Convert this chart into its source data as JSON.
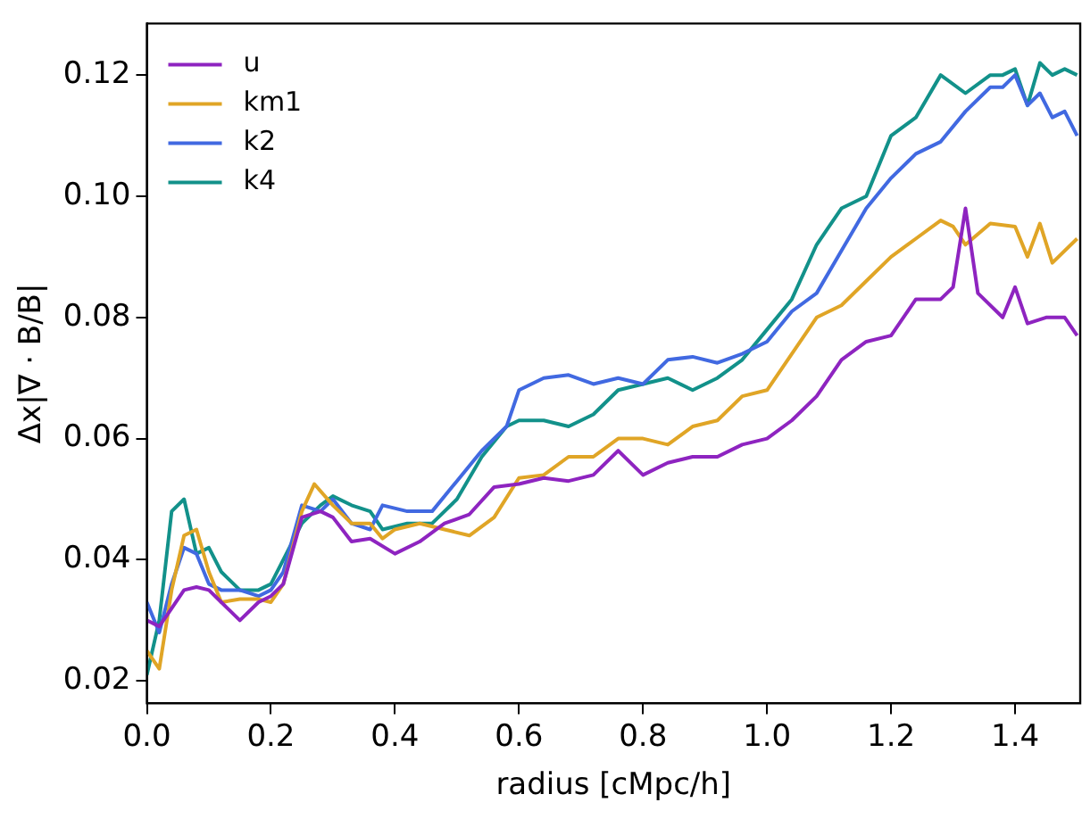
{
  "chart_data": {
    "type": "line",
    "xlabel": "radius [cMpc/h]",
    "ylabel": "Δx|∇ · B/B|",
    "xlim": [
      0,
      1.505
    ],
    "xticks": [
      {
        "value": 0,
        "label": "0.0"
      },
      0.2,
      0.4,
      0.6,
      0.8,
      {
        "value": 1,
        "label": "1.0"
      },
      1.2,
      1.4
    ],
    "ylim": [
      0.0163,
      0.1285
    ],
    "yticks": [
      0.02,
      0.04,
      0.06,
      0.08,
      {
        "value": 0.1,
        "label": "0.10"
      },
      0.12
    ],
    "grid": false,
    "legend": "top left",
    "marker": "none",
    "line_style": "solid",
    "series": [
      {
        "name": "u",
        "color": "#8e24c0",
        "x": [
          0,
          0.02,
          0.04,
          0.06,
          0.08,
          0.1,
          0.12,
          0.15,
          0.18,
          0.2,
          0.22,
          0.25,
          0.28,
          0.3,
          0.33,
          0.36,
          0.4,
          0.44,
          0.48,
          0.52,
          0.56,
          0.6,
          0.64,
          0.68,
          0.72,
          0.76,
          0.8,
          0.84,
          0.88,
          0.92,
          0.96,
          1.0,
          1.04,
          1.08,
          1.12,
          1.16,
          1.2,
          1.24,
          1.28,
          1.3,
          1.32,
          1.34,
          1.38,
          1.4,
          1.42,
          1.45,
          1.48,
          1.5
        ],
        "values": [
          0.03,
          0.029,
          0.032,
          0.035,
          0.0355,
          0.035,
          0.033,
          0.03,
          0.033,
          0.034,
          0.036,
          0.047,
          0.048,
          0.047,
          0.043,
          0.0435,
          0.041,
          0.043,
          0.046,
          0.0475,
          0.052,
          0.0525,
          0.0535,
          0.053,
          0.054,
          0.058,
          0.054,
          0.056,
          0.057,
          0.057,
          0.059,
          0.06,
          0.063,
          0.067,
          0.073,
          0.076,
          0.077,
          0.083,
          0.083,
          0.085,
          0.098,
          0.084,
          0.08,
          0.085,
          0.079,
          0.08,
          0.08,
          0.077
        ]
      },
      {
        "name": "km1",
        "color": "#e0a526",
        "x": [
          0,
          0.02,
          0.04,
          0.06,
          0.08,
          0.1,
          0.12,
          0.15,
          0.18,
          0.2,
          0.22,
          0.25,
          0.27,
          0.3,
          0.33,
          0.36,
          0.38,
          0.4,
          0.44,
          0.48,
          0.52,
          0.56,
          0.6,
          0.64,
          0.68,
          0.72,
          0.76,
          0.8,
          0.84,
          0.88,
          0.92,
          0.96,
          1.0,
          1.04,
          1.08,
          1.12,
          1.16,
          1.2,
          1.24,
          1.28,
          1.3,
          1.32,
          1.36,
          1.4,
          1.42,
          1.44,
          1.46,
          1.5
        ],
        "values": [
          0.025,
          0.022,
          0.035,
          0.044,
          0.045,
          0.038,
          0.033,
          0.0335,
          0.0335,
          0.033,
          0.036,
          0.048,
          0.0525,
          0.049,
          0.046,
          0.046,
          0.0435,
          0.045,
          0.046,
          0.045,
          0.044,
          0.047,
          0.0535,
          0.054,
          0.057,
          0.057,
          0.06,
          0.06,
          0.059,
          0.062,
          0.063,
          0.067,
          0.068,
          0.074,
          0.08,
          0.082,
          0.086,
          0.09,
          0.093,
          0.096,
          0.095,
          0.092,
          0.0955,
          0.095,
          0.09,
          0.0955,
          0.089,
          0.093
        ]
      },
      {
        "name": "k2",
        "color": "#4169e1",
        "x": [
          0,
          0.02,
          0.04,
          0.06,
          0.08,
          0.1,
          0.12,
          0.15,
          0.18,
          0.2,
          0.22,
          0.25,
          0.28,
          0.3,
          0.33,
          0.36,
          0.38,
          0.42,
          0.46,
          0.5,
          0.54,
          0.58,
          0.6,
          0.64,
          0.68,
          0.72,
          0.76,
          0.8,
          0.84,
          0.88,
          0.92,
          0.96,
          1.0,
          1.04,
          1.08,
          1.12,
          1.16,
          1.2,
          1.24,
          1.28,
          1.32,
          1.36,
          1.38,
          1.4,
          1.42,
          1.44,
          1.46,
          1.48,
          1.5
        ],
        "values": [
          0.033,
          0.028,
          0.036,
          0.042,
          0.041,
          0.036,
          0.035,
          0.035,
          0.034,
          0.035,
          0.038,
          0.049,
          0.048,
          0.05,
          0.046,
          0.045,
          0.049,
          0.048,
          0.048,
          0.053,
          0.058,
          0.062,
          0.068,
          0.07,
          0.0705,
          0.069,
          0.07,
          0.069,
          0.073,
          0.0735,
          0.0725,
          0.074,
          0.076,
          0.081,
          0.084,
          0.091,
          0.098,
          0.103,
          0.107,
          0.109,
          0.114,
          0.118,
          0.118,
          0.12,
          0.115,
          0.117,
          0.113,
          0.114,
          0.11
        ]
      },
      {
        "name": "k4",
        "color": "#12918a",
        "x": [
          0,
          0.02,
          0.04,
          0.06,
          0.08,
          0.1,
          0.12,
          0.15,
          0.18,
          0.2,
          0.22,
          0.25,
          0.28,
          0.3,
          0.33,
          0.36,
          0.38,
          0.42,
          0.46,
          0.5,
          0.54,
          0.58,
          0.6,
          0.64,
          0.68,
          0.72,
          0.76,
          0.8,
          0.84,
          0.88,
          0.92,
          0.96,
          1.0,
          1.04,
          1.08,
          1.12,
          1.16,
          1.2,
          1.24,
          1.28,
          1.32,
          1.36,
          1.38,
          1.4,
          1.42,
          1.44,
          1.46,
          1.48,
          1.5
        ],
        "values": [
          0.021,
          0.03,
          0.048,
          0.05,
          0.041,
          0.042,
          0.038,
          0.035,
          0.035,
          0.036,
          0.04,
          0.046,
          0.049,
          0.0505,
          0.049,
          0.048,
          0.045,
          0.046,
          0.046,
          0.05,
          0.057,
          0.062,
          0.063,
          0.063,
          0.062,
          0.064,
          0.068,
          0.069,
          0.07,
          0.068,
          0.07,
          0.073,
          0.078,
          0.083,
          0.092,
          0.098,
          0.1,
          0.11,
          0.113,
          0.12,
          0.117,
          0.12,
          0.12,
          0.121,
          0.115,
          0.122,
          0.12,
          0.121,
          0.12
        ]
      }
    ]
  }
}
